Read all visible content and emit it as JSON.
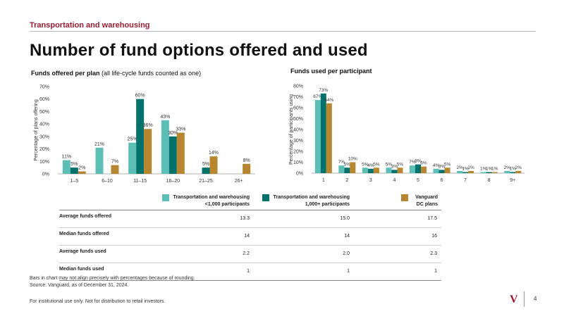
{
  "header": {
    "section": "Transportation and warehousing",
    "title": "Number of fund options offered and used"
  },
  "colors": {
    "small": "#5bbfb5",
    "large": "#00716b",
    "vanguard": "#b8862e",
    "accent": "#9b1b30"
  },
  "chart_data": [
    {
      "type": "bar",
      "title_bold": "Funds offered per plan",
      "title_rest": "(all life-cycle funds counted as one)",
      "ylabel": "Percentage of plans offering",
      "ylim": [
        0,
        70
      ],
      "yticks": [
        "0%",
        "10%",
        "20%",
        "30%",
        "40%",
        "50%",
        "60%",
        "70%"
      ],
      "categories": [
        "1–5",
        "6–10",
        "11–15",
        "16–20",
        "21–25",
        "26+"
      ],
      "series": [
        {
          "name": "Transportation and warehousing <1,000 participants",
          "values": [
            11,
            21,
            25,
            43,
            0,
            0
          ],
          "labels": [
            "11%",
            "21%",
            "25%",
            "43%",
            "",
            ""
          ]
        },
        {
          "name": "Transportation and warehousing 1,000+ participants",
          "values": [
            5,
            0,
            60,
            30,
            5,
            0
          ],
          "labels": [
            "5%",
            "",
            "60%",
            "30%",
            "5%",
            ""
          ]
        },
        {
          "name": "Vanguard DC plans",
          "values": [
            2,
            7,
            36,
            33,
            14,
            8
          ],
          "labels": [
            "2%",
            "7%",
            "36%",
            "33%",
            "14%",
            "8%"
          ]
        }
      ]
    },
    {
      "type": "bar",
      "title": "Funds used per participant",
      "ylabel": "Percentage of participants using",
      "ylim": [
        0,
        80
      ],
      "yticks": [
        "0%",
        "10%",
        "20%",
        "30%",
        "40%",
        "50%",
        "60%",
        "70%",
        "80%"
      ],
      "categories": [
        "1",
        "2",
        "3",
        "4",
        "5",
        "6",
        "7",
        "8",
        "9+"
      ],
      "series": [
        {
          "name": "Transportation and warehousing <1,000 participants",
          "values": [
            67,
            7,
            5,
            5,
            7,
            4,
            2,
            1,
            2
          ],
          "labels": [
            "67%",
            "7%",
            "5%",
            "5%",
            "7%",
            "4%",
            "2%",
            "1%",
            "2%"
          ]
        },
        {
          "name": "Transportation and warehousing 1,000+ participants",
          "values": [
            73,
            5,
            4,
            3,
            8,
            3,
            1,
            1,
            1
          ],
          "labels": [
            "73%",
            "5%",
            "4%",
            "3%",
            "8%",
            "3%",
            "1%",
            "1%",
            "1%"
          ]
        },
        {
          "name": "Vanguard DC plans",
          "values": [
            64,
            10,
            5,
            5,
            6,
            5,
            2,
            1,
            2
          ],
          "labels": [
            "64%",
            "10%",
            "5%",
            "5%",
            "6%",
            "5%",
            "2%",
            "1%",
            "2%"
          ]
        }
      ]
    }
  ],
  "legend": [
    {
      "line1": "Transportation and warehousing",
      "line2": "<1,000 participants"
    },
    {
      "line1": "Transportation and warehousing",
      "line2": "1,000+ participants"
    },
    {
      "line1": "Vanguard",
      "line2": "DC plans"
    }
  ],
  "table": {
    "rows": [
      {
        "label": "Average funds offered",
        "values": [
          "13.3",
          "15.0",
          "17.5"
        ]
      },
      {
        "label": "Median funds offered",
        "values": [
          "14",
          "14",
          "16"
        ]
      },
      {
        "label": "Average funds used",
        "values": [
          "2.2",
          "2.0",
          "2.3"
        ]
      },
      {
        "label": "Median funds used",
        "values": [
          "1",
          "1",
          "1"
        ]
      }
    ]
  },
  "footnote": {
    "line1": "Bars in chart may not align precisely with percentages because of rounding.",
    "line2": "Source: Vanguard, as of December 31, 2024."
  },
  "footer": {
    "disclaimer": "For institutional use only. Not for distribution to retail investors.",
    "logo": "V",
    "page": "4"
  }
}
